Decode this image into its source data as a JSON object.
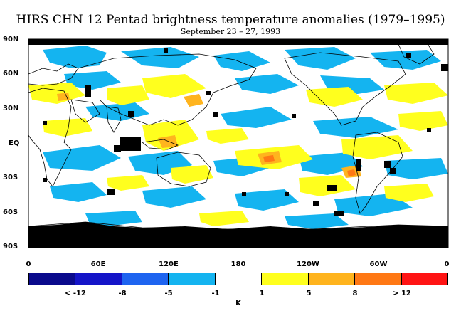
{
  "title": "HIRS CHN 12 Pentad brightness temperature anomalies (1979–1995)",
  "subtitle": "September 23 – 27, 1993",
  "y_axis_labels": [
    "90N",
    "60N",
    "30N",
    "EQ",
    "30S",
    "60S",
    "90S"
  ],
  "x_axis_labels": [
    "0",
    "60E",
    "120E",
    "180",
    "120W",
    "60W",
    "0"
  ],
  "colorbar": {
    "colors": [
      "#0a0a8c",
      "#1414c8",
      "#1e64f0",
      "#14b4f0",
      "#ffffff",
      "#ffff1e",
      "#ffb41e",
      "#ff7814",
      "#ff1414"
    ],
    "labels": [
      "< -12",
      "-8",
      "-5",
      "-1",
      "1",
      "5",
      "8",
      "> 12"
    ],
    "unit": "K"
  },
  "map": {
    "fill_colors": {
      "cold": "#14b4f0",
      "warm": "#ffff1e",
      "warmer": "#ffb41e",
      "hot": "#ff7814",
      "missing": "#000000",
      "land_outline": "#000000"
    }
  }
}
